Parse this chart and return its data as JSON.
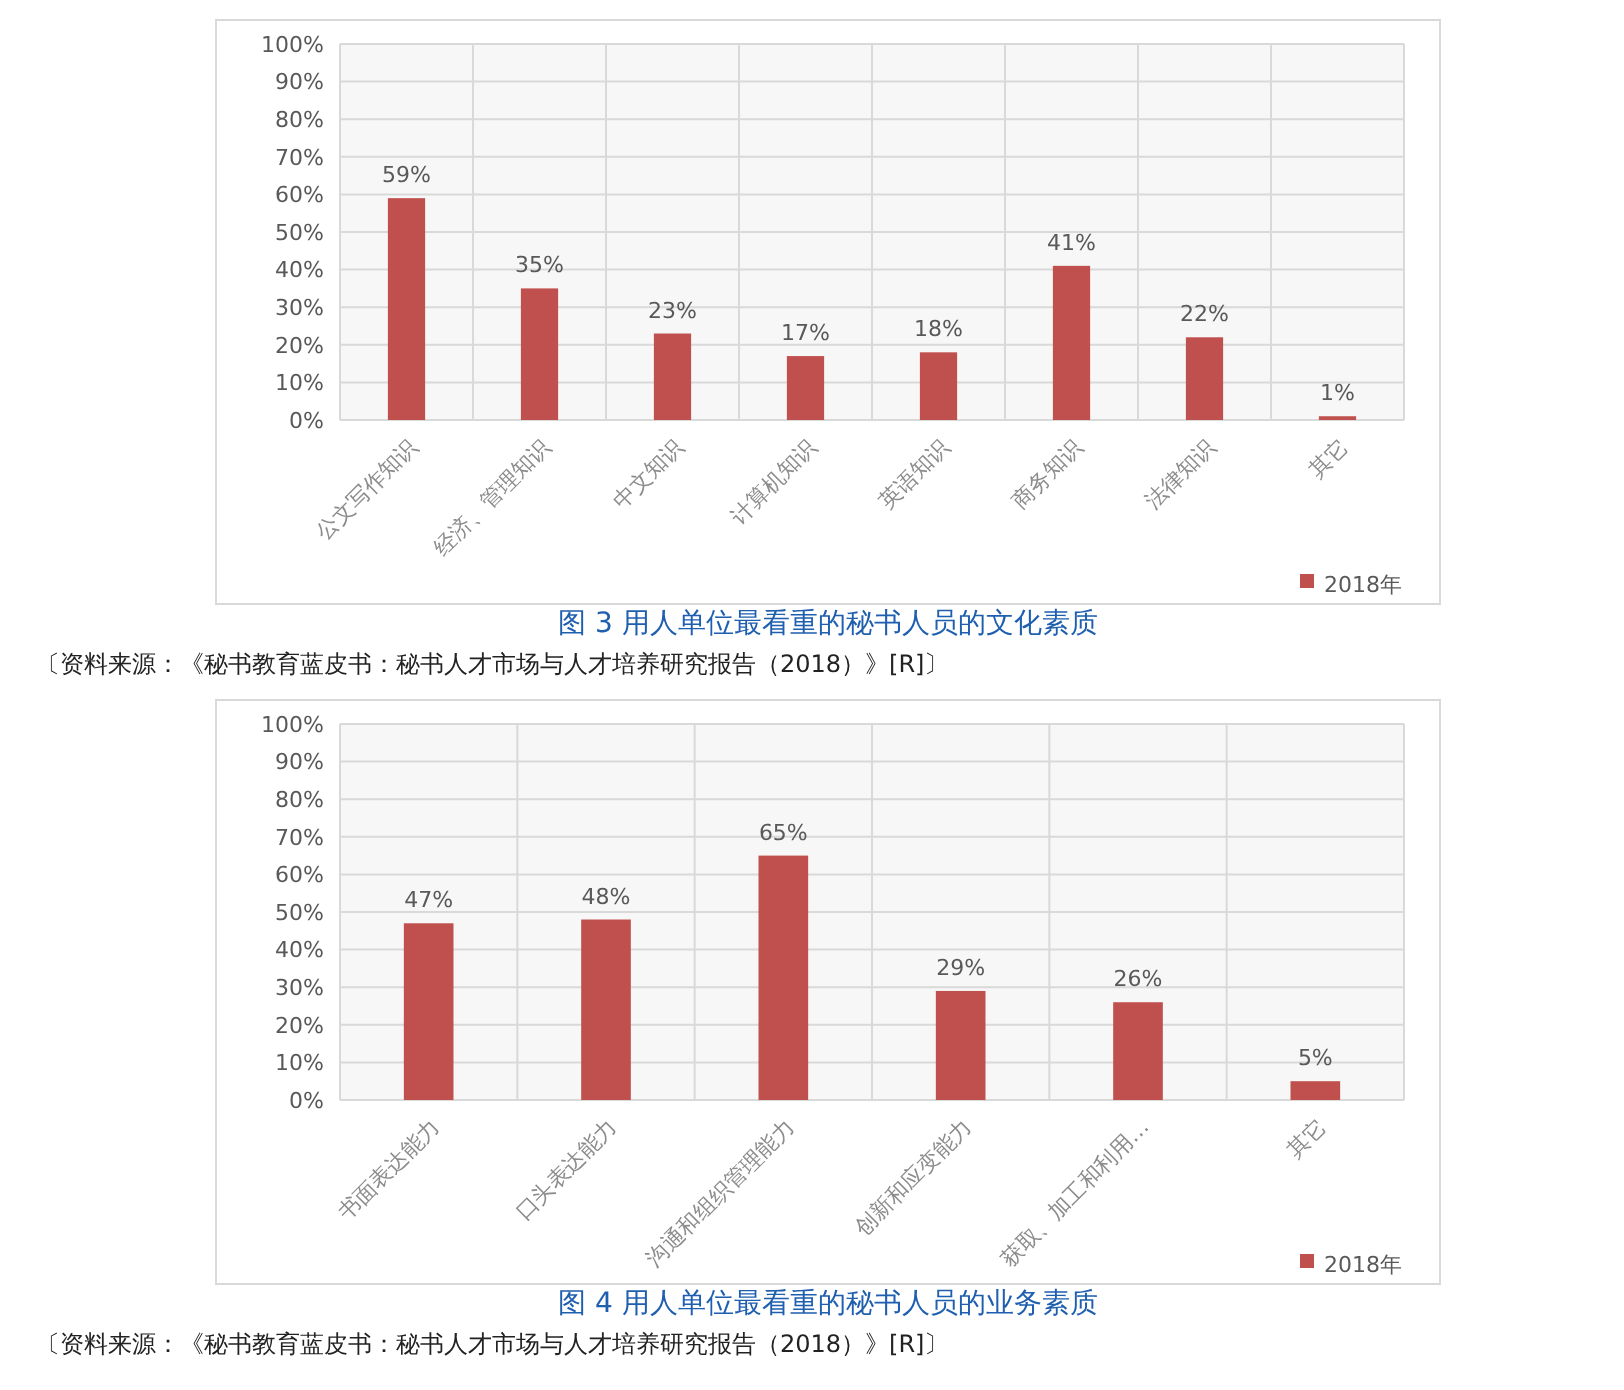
{
  "chart_data": [
    {
      "type": "bar",
      "title": "图 3 用人单位最看重的秘书人员的文化素质",
      "categories": [
        "公文写作知识",
        "经济、管理知识",
        "中文知识",
        "计算机知识",
        "英语知识",
        "商务知识",
        "法律知识",
        "其它"
      ],
      "series": [
        {
          "name": "2018年",
          "color": "#c0504d",
          "values": [
            59,
            35,
            23,
            17,
            18,
            41,
            22,
            1
          ],
          "value_labels": [
            "59%",
            "35%",
            "23%",
            "17%",
            "18%",
            "41%",
            "22%",
            "1%"
          ]
        }
      ],
      "ylim": [
        0,
        100
      ],
      "yticks": [
        {
          "value": 0,
          "label": "0%"
        },
        {
          "value": 10,
          "label": "10%"
        },
        {
          "value": 20,
          "label": "20%"
        },
        {
          "value": 30,
          "label": "30%"
        },
        {
          "value": 40,
          "label": "40%"
        },
        {
          "value": 50,
          "label": "50%"
        },
        {
          "value": 60,
          "label": "60%"
        },
        {
          "value": 70,
          "label": "70%"
        },
        {
          "value": 80,
          "label": "80%"
        },
        {
          "value": 90,
          "label": "90%"
        },
        {
          "value": 100,
          "label": "100%"
        }
      ],
      "grid": true,
      "legend": "bottom",
      "annotations": [
        "〔资料来源：《秘书教育蓝皮书：秘书人才市场与人才培养研究报告（2018）》[R]〕"
      ]
    },
    {
      "type": "bar",
      "title": "图 4 用人单位最看重的秘书人员的业务素质",
      "categories": [
        "书面表达能力",
        "口头表达能力",
        "沟通和组织管理能力",
        "创新和应变能力",
        "获取、加工和利用…",
        "其它"
      ],
      "series": [
        {
          "name": "2018年",
          "color": "#c0504d",
          "values": [
            47,
            48,
            65,
            29,
            26,
            5
          ],
          "value_labels": [
            "47%",
            "48%",
            "65%",
            "29%",
            "26%",
            "5%"
          ]
        }
      ],
      "ylim": [
        0,
        100
      ],
      "yticks": [
        {
          "value": 0,
          "label": "0%"
        },
        {
          "value": 10,
          "label": "10%"
        },
        {
          "value": 20,
          "label": "20%"
        },
        {
          "value": 30,
          "label": "30%"
        },
        {
          "value": 40,
          "label": "40%"
        },
        {
          "value": 50,
          "label": "50%"
        },
        {
          "value": 60,
          "label": "60%"
        },
        {
          "value": 70,
          "label": "70%"
        },
        {
          "value": 80,
          "label": "80%"
        },
        {
          "value": 90,
          "label": "90%"
        },
        {
          "value": 100,
          "label": "100%"
        }
      ],
      "grid": true,
      "legend": "bottom",
      "annotations": [
        "〔资料来源：《秘书教育蓝皮书：秘书人才市场与人才培养研究报告（2018）》[R]〕"
      ]
    }
  ]
}
